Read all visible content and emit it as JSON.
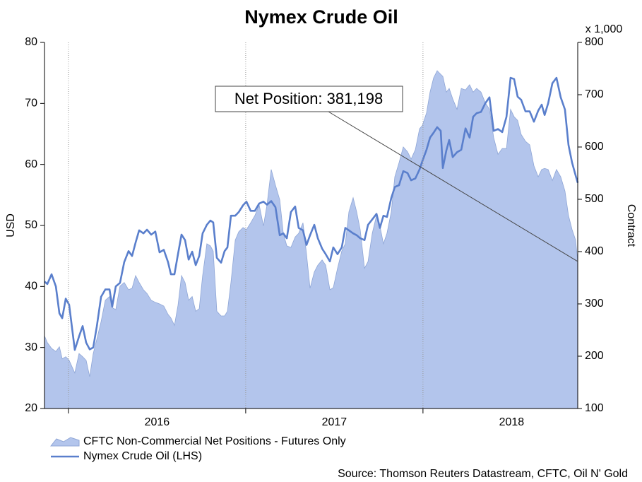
{
  "chart_data": {
    "type": "line",
    "title": "Nymex Crude Oil",
    "ylabel": "USD",
    "y2label": "Contract",
    "y2unit": "x 1,000",
    "source": "Source: Thomson Reuters Datastream, CFTC, Oil N' Gold",
    "annotation": "Net Position: 381,198",
    "x": [
      2015.865,
      2015.881,
      2015.905,
      2015.929,
      2015.949,
      2015.965,
      2015.985,
      2016.004,
      2016.036,
      2016.06,
      2016.08,
      2016.1,
      2016.12,
      2016.14,
      2016.16,
      2016.184,
      2016.208,
      2016.232,
      2016.247,
      2016.267,
      2016.291,
      2016.315,
      2016.339,
      2016.359,
      2016.379,
      2016.399,
      2016.423,
      2016.443,
      2016.467,
      2016.49,
      2016.514,
      2016.538,
      2016.562,
      2016.578,
      2016.598,
      2016.618,
      2016.638,
      2016.658,
      2016.678,
      2016.698,
      2016.718,
      2016.738,
      2016.757,
      2016.781,
      2016.801,
      2016.817,
      2016.837,
      2016.861,
      2016.881,
      2016.897,
      2016.917,
      2016.941,
      2016.961,
      2016.985,
      2017.004,
      2017.028,
      2017.052,
      2017.076,
      2017.1,
      2017.12,
      2017.144,
      2017.168,
      2017.192,
      2017.212,
      2017.232,
      2017.255,
      2017.279,
      2017.299,
      2017.323,
      2017.343,
      2017.363,
      2017.387,
      2017.407,
      2017.431,
      2017.451,
      2017.475,
      2017.494,
      2017.518,
      2017.542,
      2017.562,
      2017.582,
      2017.606,
      2017.626,
      2017.646,
      2017.67,
      2017.69,
      2017.714,
      2017.738,
      2017.757,
      2017.777,
      2017.797,
      2017.821,
      2017.841,
      2017.865,
      2017.889,
      2017.913,
      2017.933,
      2017.957,
      2017.981,
      2017.996,
      2018.02,
      2018.04,
      2018.06,
      2018.08,
      2018.1,
      2018.112,
      2018.132,
      2018.148,
      2018.168,
      2018.192,
      2018.216,
      2018.24,
      2018.263,
      2018.283,
      2018.303,
      2018.327,
      2018.351,
      2018.375,
      2018.399,
      2018.423,
      2018.447,
      2018.471,
      2018.494,
      2018.514,
      2018.534,
      2018.554,
      2018.578,
      2018.602,
      2018.626,
      2018.65,
      2018.67,
      2018.686,
      2018.706,
      2018.73,
      2018.753,
      2018.777,
      2018.801,
      2018.821,
      2018.841,
      2018.861,
      2018.873
    ],
    "xlim": [
      2015.865,
      2018.873
    ],
    "xticks": [
      2016,
      2017,
      2018
    ],
    "ylim": [
      20,
      80
    ],
    "yticks": [
      20,
      30,
      40,
      50,
      60,
      70,
      80
    ],
    "y2lim": [
      100,
      800
    ],
    "y2ticks": [
      100,
      200,
      300,
      400,
      500,
      600,
      700,
      800
    ],
    "grid": true,
    "series": [
      {
        "name": "CFTC Non-Commercial Net Positions - Futures Only",
        "type": "area",
        "axis": "y2",
        "color": "#b3c5ec",
        "values": [
          239,
          226,
          215,
          209,
          218,
          195,
          199,
          192,
          168,
          205,
          199,
          192,
          161,
          205,
          232,
          266,
          307,
          314,
          293,
          289,
          334,
          341,
          327,
          330,
          354,
          341,
          327,
          320,
          307,
          303,
          300,
          296,
          280,
          273,
          259,
          297,
          354,
          341,
          307,
          314,
          286,
          291,
          354,
          415,
          411,
          401,
          286,
          277,
          277,
          286,
          341,
          422,
          438,
          446,
          442,
          455,
          469,
          489,
          449,
          489,
          557,
          527,
          499,
          435,
          411,
          408,
          428,
          435,
          455,
          395,
          330,
          361,
          374,
          384,
          374,
          327,
          331,
          368,
          401,
          415,
          476,
          503,
          476,
          442,
          368,
          381,
          435,
          469,
          449,
          415,
          435,
          476,
          543,
          570,
          600,
          591,
          577,
          595,
          635,
          641,
          665,
          705,
          732,
          746,
          739,
          735,
          705,
          712,
          692,
          672,
          712,
          709,
          719,
          705,
          712,
          705,
          685,
          672,
          618,
          586,
          597,
          597,
          672,
          658,
          651,
          624,
          611,
          604,
          564,
          543,
          557,
          559,
          557,
          536,
          557,
          543,
          516,
          469,
          442,
          422,
          381.198
        ]
      },
      {
        "name": "Nymex Crude Oil (LHS)",
        "type": "line",
        "color": "#5a7fcc",
        "values": [
          40.8,
          40.4,
          42,
          40,
          35.6,
          34.8,
          38,
          37,
          29.6,
          31.8,
          33.5,
          30.8,
          29.7,
          30,
          33.4,
          38.3,
          39.5,
          39.5,
          36.7,
          40,
          40.6,
          44,
          45.8,
          45,
          47.2,
          49.2,
          48.7,
          49.3,
          48.5,
          49,
          45.6,
          46,
          44,
          42,
          42,
          45.3,
          48.5,
          47.6,
          44.4,
          45.7,
          43.5,
          45,
          48.7,
          50.1,
          50.8,
          50.5,
          44.7,
          43.9,
          45.8,
          46.4,
          51.6,
          51.6,
          52.2,
          53.3,
          53.9,
          52.4,
          52.4,
          53.6,
          53.9,
          53.4,
          54,
          53,
          48.4,
          48.7,
          47.9,
          52.2,
          53.1,
          49.6,
          49.2,
          46.8,
          48.4,
          50.1,
          47.9,
          46.2,
          45.3,
          44.1,
          46.4,
          45.3,
          46.4,
          49.6,
          49.2,
          48.7,
          48.4,
          47.9,
          47.6,
          50.1,
          51,
          51.9,
          49.6,
          51.6,
          51.4,
          54.5,
          56.3,
          56.6,
          58.9,
          58.6,
          57.4,
          57.7,
          59.2,
          60.5,
          62.4,
          64.4,
          65.2,
          66.1,
          65.5,
          59.4,
          62.3,
          64,
          61.2,
          62,
          62.4,
          65.9,
          64.4,
          67.8,
          68.4,
          68.6,
          70,
          71,
          65.5,
          65.8,
          65.3,
          67.8,
          74.2,
          74,
          71.1,
          70.6,
          68.7,
          68.7,
          67,
          68.8,
          69.8,
          68.1,
          70,
          73.3,
          74.2,
          71,
          69,
          63.2,
          60.3,
          58.2,
          57
        ]
      }
    ]
  }
}
